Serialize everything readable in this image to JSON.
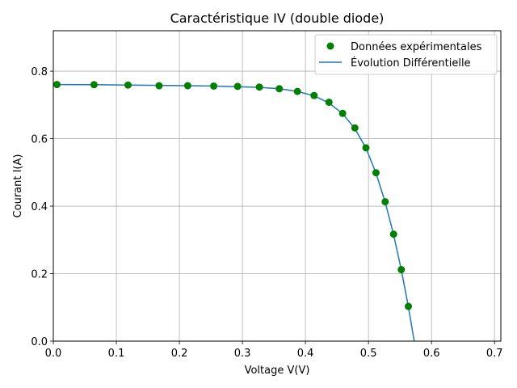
{
  "chart_data": {
    "type": "scatter",
    "title": "Caractéristique IV (double diode)",
    "xlabel": "Voltage V(V)",
    "ylabel": "Courant I(A)",
    "xlim": [
      0,
      0.71
    ],
    "ylim": [
      0,
      0.92
    ],
    "xticks": [
      "0.0",
      "0.1",
      "0.2",
      "0.3",
      "0.4",
      "0.5",
      "0.6",
      "0.7"
    ],
    "yticks": [
      "0.0",
      "0.2",
      "0.4",
      "0.6",
      "0.8"
    ],
    "grid": true,
    "legend_position": "top-right",
    "series": [
      {
        "name": "Données expérimentales",
        "kind": "markers",
        "color": "#008000",
        "x": [
          0.0057,
          0.0646,
          0.1185,
          0.1678,
          0.2132,
          0.2545,
          0.2924,
          0.3269,
          0.3585,
          0.3873,
          0.4137,
          0.4373,
          0.459,
          0.4784,
          0.496,
          0.5119,
          0.5265,
          0.5398,
          0.5521,
          0.5633
        ],
        "y": [
          0.7605,
          0.76,
          0.759,
          0.757,
          0.757,
          0.756,
          0.755,
          0.753,
          0.748,
          0.74,
          0.728,
          0.708,
          0.675,
          0.632,
          0.573,
          0.499,
          0.413,
          0.317,
          0.212,
          0.103
        ]
      },
      {
        "name": "Évolution Différentielle",
        "kind": "line",
        "color": "#1f77b4",
        "x": [
          0.0057,
          0.0646,
          0.1185,
          0.1678,
          0.2132,
          0.2545,
          0.2924,
          0.3269,
          0.3585,
          0.3873,
          0.4137,
          0.4373,
          0.459,
          0.4784,
          0.496,
          0.5119,
          0.5265,
          0.5398,
          0.5521,
          0.5633,
          0.5735
        ],
        "y": [
          0.7605,
          0.76,
          0.759,
          0.758,
          0.757,
          0.756,
          0.754,
          0.752,
          0.748,
          0.74,
          0.727,
          0.706,
          0.674,
          0.63,
          0.572,
          0.498,
          0.412,
          0.316,
          0.211,
          0.102,
          -0.01
        ]
      }
    ]
  }
}
